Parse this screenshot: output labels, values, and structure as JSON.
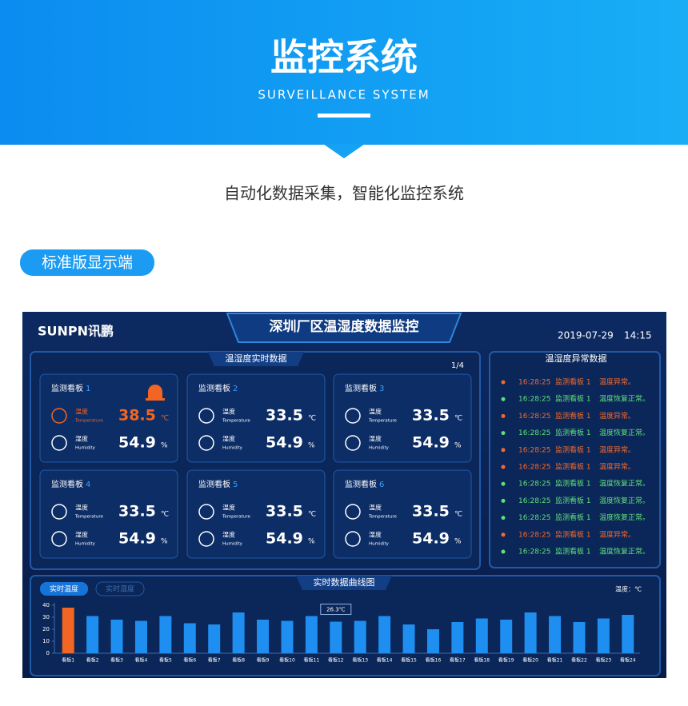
{
  "header": {
    "title": "监控系统",
    "subtitle": "SURVEILLANCE SYSTEM"
  },
  "tagline": "自动化数据采集，智能化监控系统",
  "badge": "标准版显示端",
  "dashboard": {
    "logo": "SUNPN讯鹏",
    "title": "深圳厂区温湿度数据监控",
    "date": "2019-07-29",
    "time": "14:15",
    "realtime": {
      "title": "温湿度实时数据",
      "page": "1/4",
      "board_label": "监测看板",
      "temp_label": "温度",
      "temp_label_en": "Temperature",
      "hum_label": "湿度",
      "hum_label_en": "Humidity",
      "temp_unit": "℃",
      "hum_unit": "%",
      "cards": [
        {
          "no": "1",
          "temperature": 38.5,
          "humidity": 54.9,
          "alarm": true
        },
        {
          "no": "2",
          "temperature": 33.5,
          "humidity": 54.9,
          "alarm": false
        },
        {
          "no": "3",
          "temperature": 33.5,
          "humidity": 54.9,
          "alarm": false
        },
        {
          "no": "4",
          "temperature": 33.5,
          "humidity": 54.9,
          "alarm": false
        },
        {
          "no": "5",
          "temperature": 33.5,
          "humidity": 54.9,
          "alarm": false
        },
        {
          "no": "6",
          "temperature": 33.5,
          "humidity": 54.9,
          "alarm": false
        }
      ]
    },
    "alerts": {
      "title": "温湿度异常数据",
      "rows": [
        {
          "time": "16:28:25",
          "board": "监测看板 1",
          "message": "温度异常。",
          "color": "#f26a2e"
        },
        {
          "time": "16:28:25",
          "board": "监测看板 1",
          "message": "温度恢复正常。",
          "color": "#5fe07a"
        },
        {
          "time": "16:28:25",
          "board": "监测看板 1",
          "message": "温度异常。",
          "color": "#f26a2e"
        },
        {
          "time": "16:28:25",
          "board": "监测看板 1",
          "message": "温度恢复正常。",
          "color": "#5fe07a"
        },
        {
          "time": "16:28:25",
          "board": "监测看板 1",
          "message": "温度异常。",
          "color": "#f26a2e"
        },
        {
          "time": "16:28:25",
          "board": "监测看板 1",
          "message": "温度异常。",
          "color": "#f26a2e"
        },
        {
          "time": "16:28:25",
          "board": "监测看板 1",
          "message": "温度恢复正常。",
          "color": "#5fe07a"
        },
        {
          "time": "16:28:25",
          "board": "监测看板 1",
          "message": "温度恢复正常。",
          "color": "#5fe07a"
        },
        {
          "time": "16:28:25",
          "board": "监测看板 1",
          "message": "温度恢复正常。",
          "color": "#5fe07a"
        },
        {
          "time": "16:28:25",
          "board": "监测看板 1",
          "message": "温度异常。",
          "color": "#f26a2e"
        },
        {
          "time": "16:28:25",
          "board": "监测看板 1",
          "message": "温度恢复正常。",
          "color": "#5fe07a"
        }
      ]
    },
    "curve": {
      "title": "实时数据曲线图",
      "tabs": [
        "实时温度",
        "实时湿度"
      ],
      "unit_label": "温度：℃",
      "chart_data": {
        "type": "bar",
        "categories": [
          "看板1",
          "看板2",
          "看板3",
          "看板4",
          "看板5",
          "看板6",
          "看板7",
          "看板8",
          "看板9",
          "看板10",
          "看板11",
          "看板12",
          "看板13",
          "看板14",
          "看板15",
          "看板16",
          "看板17",
          "看板18",
          "看板19",
          "看板20",
          "看板21",
          "看板22",
          "看板23",
          "看板24"
        ],
        "values": [
          38,
          31,
          28,
          27,
          31,
          25,
          24,
          34,
          28,
          27,
          31,
          26.3,
          27,
          31,
          24,
          20,
          26,
          29,
          28,
          34,
          31,
          26,
          29,
          32
        ],
        "value_labels": [
          null,
          null,
          null,
          null,
          null,
          null,
          null,
          null,
          null,
          null,
          null,
          "26.3℃",
          null,
          null,
          null,
          null,
          null,
          null,
          null,
          null,
          null,
          null,
          null,
          null
        ],
        "colors": [
          "#f26522",
          "#1e8ff0",
          "#1e8ff0",
          "#1e8ff0",
          "#1e8ff0",
          "#1e8ff0",
          "#1e8ff0",
          "#1e8ff0",
          "#1e8ff0",
          "#1e8ff0",
          "#1e8ff0",
          "#1e8ff0",
          "#1e8ff0",
          "#1e8ff0",
          "#1e8ff0",
          "#1e8ff0",
          "#1e8ff0",
          "#1e8ff0",
          "#1e8ff0",
          "#1e8ff0",
          "#1e8ff0",
          "#1e8ff0",
          "#1e8ff0",
          "#1e8ff0"
        ],
        "ylim": [
          0,
          40
        ],
        "yticks": [
          0,
          10,
          20,
          30,
          40
        ]
      }
    }
  }
}
